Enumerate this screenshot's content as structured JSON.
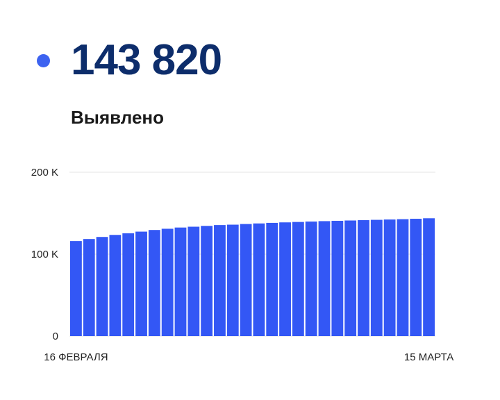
{
  "stat": {
    "value": "143 820",
    "label": "Выявлено",
    "dot_color": "#3d63f0"
  },
  "colors": {
    "bar": "#3357f5",
    "grid": "#e6e6e6"
  },
  "chart_data": {
    "type": "bar",
    "title": "",
    "xlabel": "",
    "ylabel": "",
    "ylim": [
      0,
      200000
    ],
    "yticks": [
      {
        "value": 0,
        "label": "0"
      },
      {
        "value": 100000,
        "label": "100 K"
      },
      {
        "value": 200000,
        "label": "200 K"
      }
    ],
    "x_tick_labels": [
      {
        "index": 0,
        "label": "16 ФЕВРАЛЯ"
      },
      {
        "index": 27,
        "label": "15 МАРТА"
      }
    ],
    "grid": true,
    "series": [
      {
        "values": [
          116000,
          118500,
          121000,
          123500,
          125500,
          127500,
          129500,
          131000,
          132500,
          133500,
          134500,
          135500,
          136000,
          136800,
          137500,
          138200,
          138800,
          139300,
          139800,
          140300,
          140700,
          141100,
          141500,
          141900,
          142300,
          142700,
          143200,
          143820
        ]
      }
    ]
  }
}
